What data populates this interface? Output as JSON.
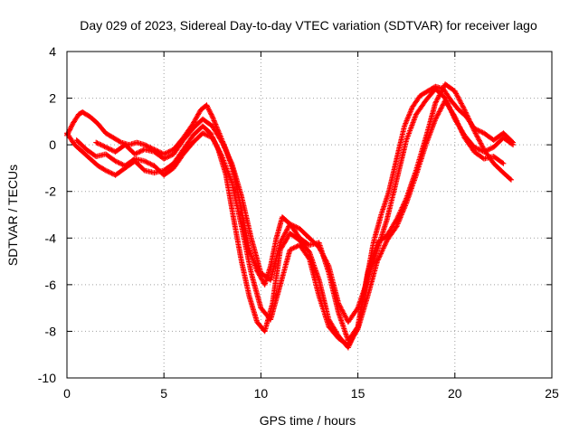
{
  "chart_data": {
    "type": "scatter",
    "title": "Day 029 of 2023, Sidereal Day-to-day VTEC variation (SDTVAR) for receiver lago",
    "xlabel": "GPS time / hours",
    "ylabel": "SDTVAR / TECUs",
    "xlim": [
      0,
      25
    ],
    "ylim": [
      -10,
      4
    ],
    "xticks": [
      0,
      5,
      10,
      15,
      20,
      25
    ],
    "yticks": [
      -10,
      -8,
      -6,
      -4,
      -2,
      0,
      2,
      4
    ],
    "xtick_labels": [
      "0",
      "5",
      "10",
      "15",
      "20",
      "25"
    ],
    "ytick_labels": [
      "-10",
      "-8",
      "-6",
      "-4",
      "-2",
      "0",
      "2",
      "4"
    ],
    "grid": true,
    "marker": "+",
    "color": "#ff0000",
    "series": [
      {
        "name": "track-1",
        "x": [
          0.0,
          0.3,
          0.6,
          0.8,
          1.2,
          1.6,
          2.0,
          2.4,
          2.8,
          3.2,
          3.6,
          4.0,
          4.5,
          5.0,
          5.5,
          6.0,
          6.5,
          6.9,
          7.2,
          7.5,
          7.8,
          8.2,
          8.6,
          9.0,
          9.4,
          9.8,
          10.2,
          10.5,
          10.8,
          11.1,
          11.5,
          12.0,
          12.5,
          13.0,
          13.5,
          14.0,
          14.5,
          15.0,
          15.4,
          15.8,
          16.2,
          16.6,
          17.0,
          17.4,
          17.8,
          18.2,
          18.6,
          19.0,
          19.4,
          19.8,
          20.2,
          20.6,
          21.0,
          21.5,
          22.0,
          22.5,
          23.0
        ],
        "y": [
          0.4,
          0.9,
          1.3,
          1.4,
          1.2,
          0.9,
          0.5,
          0.3,
          0.1,
          0.0,
          0.1,
          0.0,
          -0.2,
          -0.4,
          -0.2,
          0.3,
          0.9,
          1.5,
          1.7,
          1.2,
          0.6,
          -0.2,
          -1.2,
          -2.8,
          -4.5,
          -5.4,
          -6.0,
          -5.2,
          -4.0,
          -3.1,
          -3.4,
          -4.0,
          -4.3,
          -4.2,
          -5.5,
          -7.2,
          -8.4,
          -7.8,
          -6.0,
          -4.2,
          -3.0,
          -2.0,
          -0.6,
          0.8,
          1.6,
          2.1,
          2.3,
          2.5,
          2.4,
          1.9,
          1.5,
          1.2,
          0.7,
          0.5,
          0.2,
          0.5,
          0.1
        ]
      },
      {
        "name": "track-2",
        "x": [
          0.0,
          0.4,
          0.8,
          1.2,
          1.6,
          2.0,
          2.5,
          3.0,
          3.5,
          4.0,
          4.5,
          5.0,
          5.5,
          6.0,
          6.5,
          7.0,
          7.4,
          7.8,
          8.2,
          8.6,
          9.0,
          9.4,
          9.8,
          10.2,
          10.6,
          11.0,
          11.5,
          12.0,
          12.5,
          13.0,
          13.5,
          14.0,
          14.5,
          15.0,
          15.5,
          16.0,
          16.5,
          17.0,
          17.5,
          18.0,
          18.5,
          19.0,
          19.5,
          20.0,
          20.5,
          21.0,
          21.5,
          22.0,
          22.5,
          22.9
        ],
        "y": [
          0.5,
          0.0,
          -0.3,
          -0.6,
          -0.9,
          -1.1,
          -1.3,
          -1.0,
          -0.7,
          -1.1,
          -1.2,
          -1.1,
          -0.8,
          -0.2,
          0.4,
          0.8,
          0.5,
          -0.2,
          -1.3,
          -3.2,
          -5.0,
          -6.5,
          -7.6,
          -8.0,
          -6.8,
          -4.5,
          -3.8,
          -4.1,
          -4.6,
          -5.8,
          -7.5,
          -8.2,
          -8.7,
          -7.8,
          -5.5,
          -4.2,
          -3.9,
          -3.2,
          -2.3,
          -1.1,
          0.3,
          1.8,
          2.6,
          2.3,
          1.5,
          0.6,
          -0.2,
          -0.8,
          -1.2,
          -1.5
        ]
      },
      {
        "name": "track-3",
        "x": [
          0.5,
          1.0,
          1.5,
          2.0,
          2.5,
          3.0,
          3.5,
          4.0,
          4.5,
          5.0,
          5.5,
          6.0,
          6.5,
          7.0,
          7.5,
          8.0,
          8.5,
          9.0,
          9.5,
          10.0,
          10.5,
          11.0,
          11.5,
          12.0,
          12.5,
          13.0,
          13.5,
          14.0,
          14.5,
          15.0,
          15.5,
          16.0,
          16.5,
          17.0,
          17.5,
          18.0,
          18.5,
          19.0,
          19.5,
          20.0,
          20.5,
          21.0,
          21.5,
          22.0,
          22.5
        ],
        "y": [
          0.2,
          -0.2,
          -0.5,
          -0.4,
          -0.7,
          -0.9,
          -0.6,
          -0.7,
          -0.9,
          -1.3,
          -1.0,
          -0.4,
          0.1,
          0.5,
          0.3,
          -0.5,
          -1.6,
          -3.5,
          -5.5,
          -7.0,
          -7.5,
          -6.0,
          -4.5,
          -4.3,
          -4.9,
          -6.5,
          -7.8,
          -8.3,
          -8.6,
          -7.9,
          -6.5,
          -5.0,
          -4.1,
          -3.5,
          -2.5,
          -1.3,
          0.0,
          1.1,
          1.9,
          1.2,
          0.3,
          -0.3,
          -0.6,
          -0.5,
          -0.8
        ]
      },
      {
        "name": "track-4",
        "x": [
          1.5,
          2.0,
          2.5,
          3.0,
          3.5,
          4.0,
          4.5,
          5.0,
          5.5,
          6.0,
          6.5,
          7.0,
          7.5,
          8.0,
          8.5,
          9.0,
          9.5,
          10.0,
          10.5,
          11.0,
          11.5,
          12.0,
          12.5,
          13.0,
          13.5,
          14.0,
          14.5,
          15.0,
          15.5,
          16.0,
          16.5,
          17.0,
          17.5,
          18.0,
          18.5,
          19.0,
          19.5,
          20.0,
          20.5,
          21.0,
          21.5,
          22.0,
          22.5,
          23.0
        ],
        "y": [
          0.1,
          -0.1,
          -0.3,
          0.0,
          -0.4,
          -0.2,
          -0.3,
          -0.6,
          -0.4,
          0.2,
          0.7,
          1.1,
          0.8,
          0.1,
          -0.8,
          -2.2,
          -4.0,
          -5.5,
          -5.8,
          -4.2,
          -3.4,
          -3.6,
          -4.0,
          -4.4,
          -5.2,
          -6.8,
          -7.6,
          -7.0,
          -5.8,
          -4.5,
          -3.2,
          -1.5,
          0.2,
          1.3,
          1.9,
          2.4,
          2.0,
          1.1,
          0.4,
          -0.1,
          -0.3,
          -0.1,
          0.3,
          0.0
        ]
      }
    ]
  }
}
